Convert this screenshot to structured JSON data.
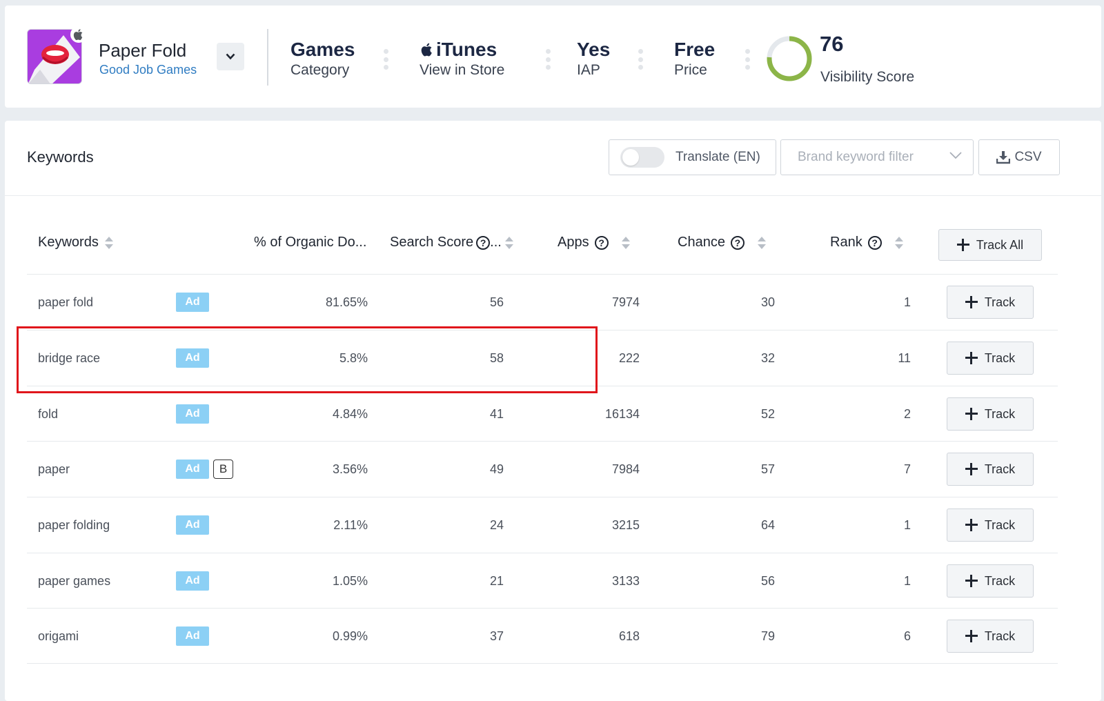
{
  "app": {
    "name": "Paper Fold",
    "developer": "Good Job Games"
  },
  "stats": {
    "category": {
      "value": "Games",
      "label": "Category"
    },
    "store": {
      "value": "iTunes",
      "label": "View in Store"
    },
    "iap": {
      "value": "Yes",
      "label": "IAP"
    },
    "price": {
      "value": "Free",
      "label": "Price"
    },
    "visibility": {
      "value": "76",
      "label": "Visibility Score",
      "fraction": 0.76
    }
  },
  "toolbar": {
    "title": "Keywords",
    "translate_label": "Translate (EN)",
    "brand_filter_placeholder": "Brand keyword filter",
    "csv_label": "CSV"
  },
  "columns": {
    "keywords": "Keywords",
    "organic": "% of Organic Do...",
    "search_score": "Search Score",
    "search_score_suffix": "...",
    "apps": "Apps",
    "chance": "Chance",
    "rank": "Rank",
    "track_all": "Track All"
  },
  "ad_label": "Ad",
  "brand_label": "B",
  "track_label": "Track",
  "rows": [
    {
      "keyword": "paper fold",
      "organic": "81.65%",
      "search": "56",
      "apps": "7974",
      "chance": "30",
      "rank": "1"
    },
    {
      "keyword": "bridge race",
      "organic": "5.8%",
      "search": "58",
      "apps": "222",
      "chance": "32",
      "rank": "11"
    },
    {
      "keyword": "fold",
      "organic": "4.84%",
      "search": "41",
      "apps": "16134",
      "chance": "52",
      "rank": "2"
    },
    {
      "keyword": "paper",
      "organic": "3.56%",
      "search": "49",
      "apps": "7984",
      "chance": "57",
      "rank": "7"
    },
    {
      "keyword": "paper folding",
      "organic": "2.11%",
      "search": "24",
      "apps": "3215",
      "chance": "64",
      "rank": "1"
    },
    {
      "keyword": "paper games",
      "organic": "1.05%",
      "search": "21",
      "apps": "3133",
      "chance": "56",
      "rank": "1"
    },
    {
      "keyword": "origami",
      "organic": "0.99%",
      "search": "37",
      "apps": "618",
      "chance": "79",
      "rank": "6"
    }
  ],
  "colors": {
    "ring_progress": "#8cb548",
    "ring_track": "#e4e8ec",
    "ad_badge": "#8cd0f5",
    "developer_link": "#2f7cc2",
    "highlight": "#e0161b"
  }
}
